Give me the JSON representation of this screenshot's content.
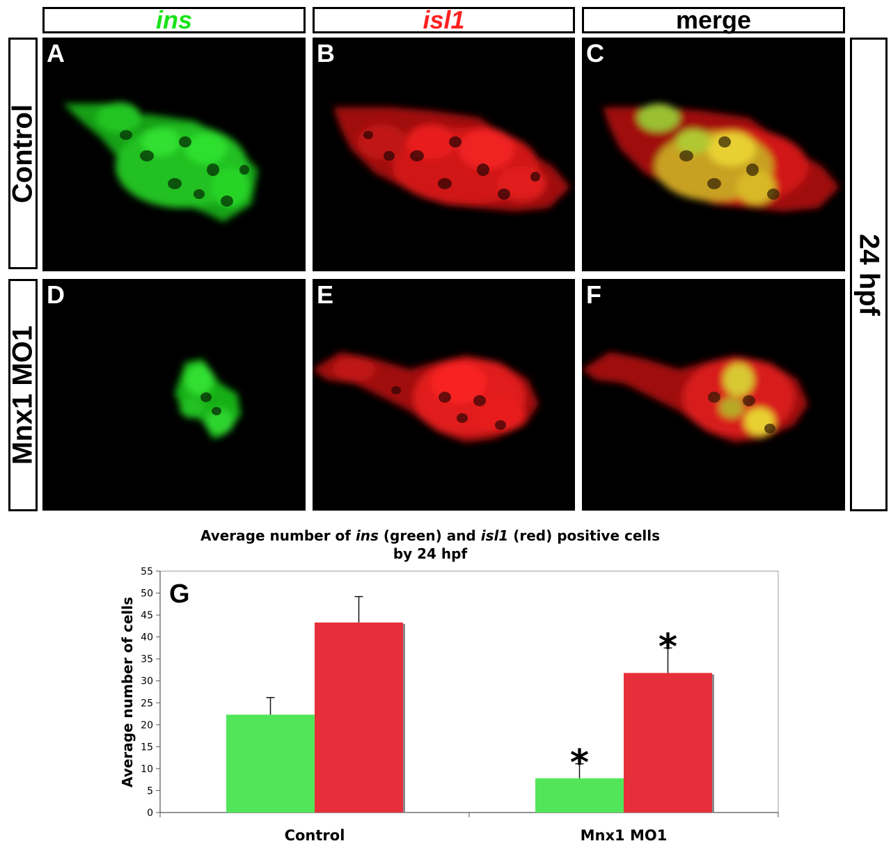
{
  "columns": [
    {
      "label": "ins",
      "color": "#19e319",
      "italic": true
    },
    {
      "label": "isl1",
      "color": "#ff2020",
      "italic": true
    },
    {
      "label": "merge",
      "color": "#000000",
      "italic": false
    }
  ],
  "rows": [
    {
      "label": "Control"
    },
    {
      "label": "Mnx1 MO1"
    }
  ],
  "side_label": "24 hpf",
  "panels": [
    "A",
    "B",
    "C",
    "D",
    "E",
    "F"
  ],
  "chart_data": {
    "type": "bar",
    "panel_letter": "G",
    "title_parts": [
      {
        "text": "Average number of ",
        "italic": false
      },
      {
        "text": "ins",
        "italic": true
      },
      {
        "text": " (green) and ",
        "italic": false
      },
      {
        "text": "isl1",
        "italic": true
      },
      {
        "text": " (red) positive cells",
        "italic": false
      }
    ],
    "title_line2": "by 24 hpf",
    "ylabel": "Average number of cells",
    "xlabel": "",
    "categories": [
      "Control",
      "Mnx1 MO1"
    ],
    "ylim": [
      0,
      55
    ],
    "yticks": [
      0,
      5,
      10,
      15,
      20,
      25,
      30,
      35,
      40,
      45,
      50,
      55
    ],
    "grid": false,
    "series": [
      {
        "values": [
          22.3,
          7.8
        ],
        "errors": [
          3.9,
          3.3
        ],
        "color": "#52e55a",
        "significant": [
          false,
          true
        ]
      },
      {
        "values": [
          43.3,
          31.8
        ],
        "errors": [
          5.9,
          5.7
        ],
        "color": "#e62f3a",
        "significant": [
          false,
          true
        ]
      }
    ],
    "significance_marker": "*"
  }
}
